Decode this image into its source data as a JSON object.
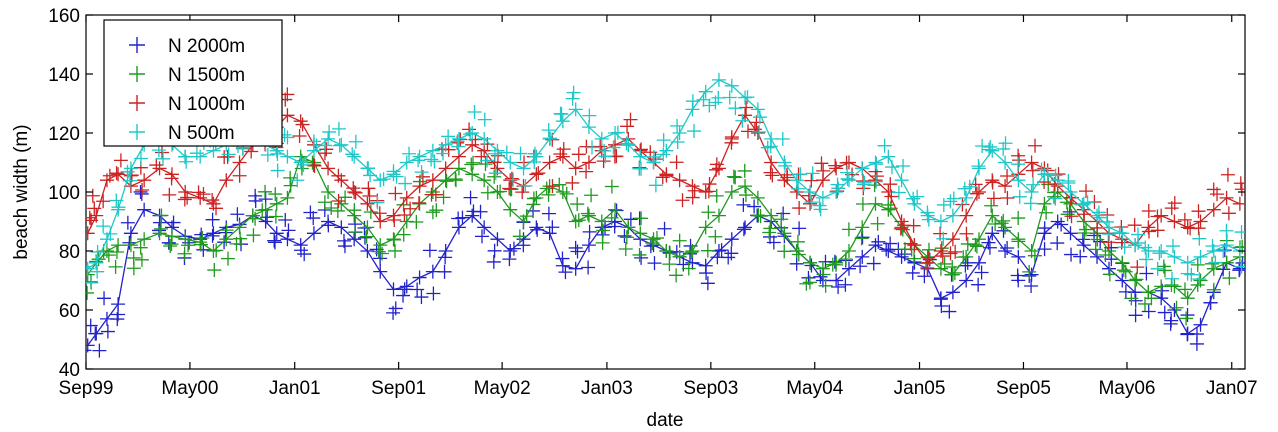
{
  "chart_data": {
    "type": "scatter",
    "xlabel": "date",
    "ylabel": "beach width (m)",
    "ylim": [
      40,
      160
    ],
    "yticks": [
      40,
      60,
      80,
      100,
      120,
      140,
      160
    ],
    "xlim": [
      "1999-09-01",
      "2007-02-01"
    ],
    "xticks": [
      {
        "label": "Sep99",
        "date": "1999-09-01"
      },
      {
        "label": "May00",
        "date": "2000-05-01"
      },
      {
        "label": "Jan01",
        "date": "2001-01-01"
      },
      {
        "label": "Sep01",
        "date": "2001-09-01"
      },
      {
        "label": "May02",
        "date": "2002-05-01"
      },
      {
        "label": "Jan03",
        "date": "2003-01-01"
      },
      {
        "label": "Sep03",
        "date": "2003-09-01"
      },
      {
        "label": "May04",
        "date": "2004-05-01"
      },
      {
        "label": "Jan05",
        "date": "2005-01-01"
      },
      {
        "label": "Sep05",
        "date": "2005-09-01"
      },
      {
        "label": "May06",
        "date": "2006-05-01"
      },
      {
        "label": "Jan07",
        "date": "2007-01-01"
      }
    ],
    "grid": false,
    "legend": "top-left",
    "series": [
      {
        "name": "N 2000m",
        "color": "#2222cc",
        "x": [
          "1999-09-05",
          "1999-09-25",
          "1999-10-20",
          "1999-11-15",
          "1999-12-15",
          "2000-01-15",
          "2000-02-20",
          "2000-03-20",
          "2000-04-20",
          "2000-05-25",
          "2000-06-25",
          "2000-07-25",
          "2000-08-25",
          "2000-09-25",
          "2000-10-25",
          "2000-11-20",
          "2000-12-15",
          "2001-01-15",
          "2001-02-15",
          "2001-03-20",
          "2001-04-20",
          "2001-05-20",
          "2001-06-20",
          "2001-07-20",
          "2001-08-20",
          "2001-09-20",
          "2001-10-20",
          "2001-11-20",
          "2001-12-20",
          "2002-01-20",
          "2002-02-20",
          "2002-03-20",
          "2002-04-20",
          "2002-05-20",
          "2002-06-20",
          "2002-07-20",
          "2002-08-20",
          "2002-09-20",
          "2002-10-20",
          "2002-11-20",
          "2002-12-20",
          "2003-01-20",
          "2003-02-20",
          "2003-03-20",
          "2003-04-20",
          "2003-05-20",
          "2003-06-20",
          "2003-07-20",
          "2003-08-20",
          "2003-09-20",
          "2003-10-20",
          "2003-11-20",
          "2003-12-20",
          "2004-01-20",
          "2004-02-20",
          "2004-03-20",
          "2004-04-20",
          "2004-05-20",
          "2004-06-20",
          "2004-07-20",
          "2004-08-20",
          "2004-09-20",
          "2004-10-20",
          "2004-11-20",
          "2004-12-20",
          "2005-01-20",
          "2005-02-20",
          "2005-03-20",
          "2005-04-20",
          "2005-05-20",
          "2005-06-20",
          "2005-07-20",
          "2005-08-20",
          "2005-09-20",
          "2005-10-20",
          "2005-11-20",
          "2005-12-20",
          "2006-01-20",
          "2006-02-20",
          "2006-03-20",
          "2006-04-20",
          "2006-05-20",
          "2006-06-20",
          "2006-07-20",
          "2006-08-20",
          "2006-09-20",
          "2006-10-20",
          "2006-11-20",
          "2006-12-20",
          "2007-01-20"
        ],
        "values": [
          48,
          52,
          57,
          62,
          86,
          94,
          92,
          88,
          85,
          84,
          86,
          88,
          89,
          92,
          90,
          86,
          84,
          82,
          86,
          90,
          88,
          84,
          80,
          73,
          67,
          68,
          71,
          73,
          80,
          88,
          92,
          88,
          84,
          80,
          84,
          88,
          86,
          75,
          74,
          82,
          88,
          90,
          88,
          84,
          82,
          80,
          78,
          76,
          75,
          80,
          84,
          88,
          92,
          90,
          85,
          80,
          76,
          70,
          70,
          74,
          78,
          82,
          80,
          78,
          76,
          74,
          64,
          66,
          70,
          76,
          86,
          80,
          78,
          72,
          86,
          90,
          86,
          82,
          78,
          74,
          70,
          66,
          66,
          64,
          60,
          52,
          55,
          66,
          76,
          74
        ]
      },
      {
        "name": "N 1500m",
        "color": "#1f9a1f",
        "x": [
          "1999-09-05",
          "1999-09-25",
          "1999-10-20",
          "1999-11-15",
          "1999-12-15",
          "2000-01-15",
          "2000-02-20",
          "2000-03-20",
          "2000-04-20",
          "2000-05-25",
          "2000-06-25",
          "2000-07-25",
          "2000-08-25",
          "2000-09-25",
          "2000-10-25",
          "2000-11-20",
          "2000-12-15",
          "2001-01-15",
          "2001-02-15",
          "2001-03-20",
          "2001-04-20",
          "2001-05-20",
          "2001-06-20",
          "2001-07-20",
          "2001-08-20",
          "2001-09-20",
          "2001-10-20",
          "2001-11-20",
          "2001-12-20",
          "2002-01-20",
          "2002-02-20",
          "2002-03-20",
          "2002-04-20",
          "2002-05-20",
          "2002-06-20",
          "2002-07-20",
          "2002-08-20",
          "2002-09-20",
          "2002-10-20",
          "2002-11-20",
          "2002-12-20",
          "2003-01-20",
          "2003-02-20",
          "2003-03-20",
          "2003-04-20",
          "2003-05-20",
          "2003-06-20",
          "2003-07-20",
          "2003-08-20",
          "2003-09-20",
          "2003-10-20",
          "2003-11-20",
          "2003-12-20",
          "2004-01-20",
          "2004-02-20",
          "2004-03-20",
          "2004-04-20",
          "2004-05-20",
          "2004-06-20",
          "2004-07-20",
          "2004-08-20",
          "2004-09-20",
          "2004-10-20",
          "2004-11-20",
          "2004-12-20",
          "2005-01-20",
          "2005-02-20",
          "2005-03-20",
          "2005-04-20",
          "2005-05-20",
          "2005-06-20",
          "2005-07-20",
          "2005-08-20",
          "2005-09-20",
          "2005-10-20",
          "2005-11-20",
          "2005-12-20",
          "2006-01-20",
          "2006-02-20",
          "2006-03-20",
          "2006-04-20",
          "2006-05-20",
          "2006-06-20",
          "2006-07-20",
          "2006-08-20",
          "2006-09-20",
          "2006-10-20",
          "2006-11-20",
          "2006-12-20",
          "2007-01-20"
        ],
        "values": [
          72,
          76,
          80,
          82,
          82,
          84,
          86,
          85,
          84,
          83,
          80,
          84,
          88,
          92,
          94,
          96,
          98,
          112,
          110,
          100,
          96,
          92,
          88,
          82,
          84,
          90,
          96,
          100,
          104,
          108,
          106,
          104,
          100,
          94,
          90,
          98,
          102,
          100,
          90,
          92,
          90,
          94,
          88,
          86,
          84,
          80,
          78,
          80,
          88,
          92,
          100,
          102,
          98,
          92,
          86,
          80,
          76,
          74,
          76,
          80,
          88,
          96,
          94,
          88,
          82,
          78,
          74,
          72,
          78,
          84,
          92,
          88,
          84,
          80,
          96,
          100,
          96,
          90,
          86,
          80,
          76,
          70,
          66,
          68,
          68,
          64,
          70,
          74,
          76,
          78
        ]
      },
      {
        "name": "N 1000m",
        "color": "#cc2222",
        "x": [
          "1999-09-05",
          "1999-09-25",
          "1999-10-20",
          "1999-11-15",
          "1999-12-15",
          "2000-01-15",
          "2000-02-20",
          "2000-03-20",
          "2000-04-20",
          "2000-05-25",
          "2000-06-25",
          "2000-07-25",
          "2000-08-25",
          "2000-09-25",
          "2000-10-25",
          "2000-11-20",
          "2000-12-15",
          "2001-01-15",
          "2001-02-15",
          "2001-03-20",
          "2001-04-20",
          "2001-05-20",
          "2001-06-20",
          "2001-07-20",
          "2001-08-20",
          "2001-09-20",
          "2001-10-20",
          "2001-11-20",
          "2001-12-20",
          "2002-01-20",
          "2002-02-20",
          "2002-03-20",
          "2002-04-20",
          "2002-05-20",
          "2002-06-20",
          "2002-07-20",
          "2002-08-20",
          "2002-09-20",
          "2002-10-20",
          "2002-11-20",
          "2002-12-20",
          "2003-01-20",
          "2003-02-20",
          "2003-03-20",
          "2003-04-20",
          "2003-05-20",
          "2003-06-20",
          "2003-07-20",
          "2003-08-20",
          "2003-09-20",
          "2003-10-20",
          "2003-11-20",
          "2003-12-20",
          "2004-01-20",
          "2004-02-20",
          "2004-03-20",
          "2004-04-20",
          "2004-05-20",
          "2004-06-20",
          "2004-07-20",
          "2004-08-20",
          "2004-09-20",
          "2004-10-20",
          "2004-11-20",
          "2004-12-20",
          "2005-01-20",
          "2005-02-20",
          "2005-03-20",
          "2005-04-20",
          "2005-05-20",
          "2005-06-20",
          "2005-07-20",
          "2005-08-20",
          "2005-09-20",
          "2005-10-20",
          "2005-11-20",
          "2005-12-20",
          "2006-01-20",
          "2006-02-20",
          "2006-03-20",
          "2006-04-20",
          "2006-05-20",
          "2006-06-20",
          "2006-07-20",
          "2006-08-20",
          "2006-09-20",
          "2006-10-20",
          "2006-11-20",
          "2006-12-20",
          "2007-01-20"
        ],
        "values": [
          86,
          92,
          104,
          106,
          102,
          104,
          108,
          106,
          100,
          98,
          96,
          104,
          110,
          116,
          118,
          122,
          126,
          124,
          116,
          108,
          104,
          100,
          96,
          90,
          92,
          98,
          102,
          104,
          108,
          112,
          116,
          114,
          108,
          104,
          102,
          106,
          110,
          112,
          108,
          110,
          114,
          116,
          118,
          114,
          110,
          106,
          104,
          102,
          100,
          108,
          118,
          126,
          120,
          110,
          104,
          100,
          96,
          104,
          108,
          110,
          108,
          104,
          100,
          90,
          82,
          76,
          80,
          84,
          92,
          100,
          104,
          102,
          106,
          110,
          108,
          102,
          98,
          94,
          90,
          86,
          84,
          82,
          88,
          92,
          90,
          88,
          90,
          94,
          98,
          96
        ]
      },
      {
        "name": "N 500m",
        "color": "#1ec8c8",
        "x": [
          "1999-09-05",
          "1999-09-25",
          "1999-10-20",
          "1999-11-15",
          "1999-12-15",
          "2000-01-15",
          "2000-02-20",
          "2000-03-20",
          "2000-04-20",
          "2000-05-25",
          "2000-06-25",
          "2000-07-25",
          "2000-08-25",
          "2000-09-25",
          "2000-10-25",
          "2000-11-20",
          "2000-12-15",
          "2001-01-15",
          "2001-02-15",
          "2001-03-20",
          "2001-04-20",
          "2001-05-20",
          "2001-06-20",
          "2001-07-20",
          "2001-08-20",
          "2001-09-20",
          "2001-10-20",
          "2001-11-20",
          "2001-12-20",
          "2002-01-20",
          "2002-02-20",
          "2002-03-20",
          "2002-04-20",
          "2002-05-20",
          "2002-06-20",
          "2002-07-20",
          "2002-08-20",
          "2002-09-20",
          "2002-10-20",
          "2002-11-20",
          "2002-12-20",
          "2003-01-20",
          "2003-02-20",
          "2003-03-20",
          "2003-04-20",
          "2003-05-20",
          "2003-06-20",
          "2003-07-20",
          "2003-08-20",
          "2003-09-20",
          "2003-10-20",
          "2003-11-20",
          "2003-12-20",
          "2004-01-20",
          "2004-02-20",
          "2004-03-20",
          "2004-04-20",
          "2004-05-20",
          "2004-06-20",
          "2004-07-20",
          "2004-08-20",
          "2004-09-20",
          "2004-10-20",
          "2004-11-20",
          "2004-12-20",
          "2005-01-20",
          "2005-02-20",
          "2005-03-20",
          "2005-04-20",
          "2005-05-20",
          "2005-06-20",
          "2005-07-20",
          "2005-08-20",
          "2005-09-20",
          "2005-10-20",
          "2005-11-20",
          "2005-12-20",
          "2006-01-20",
          "2006-02-20",
          "2006-03-20",
          "2006-04-20",
          "2006-05-20",
          "2006-06-20",
          "2006-07-20",
          "2006-08-20",
          "2006-09-20",
          "2006-10-20",
          "2006-11-20",
          "2006-12-20",
          "2007-01-20"
        ],
        "values": [
          74,
          76,
          84,
          94,
          108,
          116,
          118,
          116,
          112,
          112,
          114,
          116,
          118,
          120,
          116,
          114,
          112,
          110,
          114,
          118,
          116,
          112,
          108,
          104,
          106,
          110,
          112,
          114,
          116,
          118,
          120,
          118,
          114,
          110,
          108,
          112,
          118,
          124,
          128,
          122,
          118,
          120,
          116,
          112,
          110,
          114,
          120,
          128,
          134,
          138,
          136,
          132,
          128,
          118,
          110,
          104,
          100,
          98,
          100,
          104,
          108,
          110,
          112,
          104,
          96,
          92,
          90,
          92,
          98,
          108,
          114,
          110,
          104,
          100,
          106,
          104,
          100,
          96,
          92,
          88,
          86,
          82,
          80,
          80,
          78,
          76,
          78,
          80,
          82,
          80
        ]
      }
    ]
  }
}
